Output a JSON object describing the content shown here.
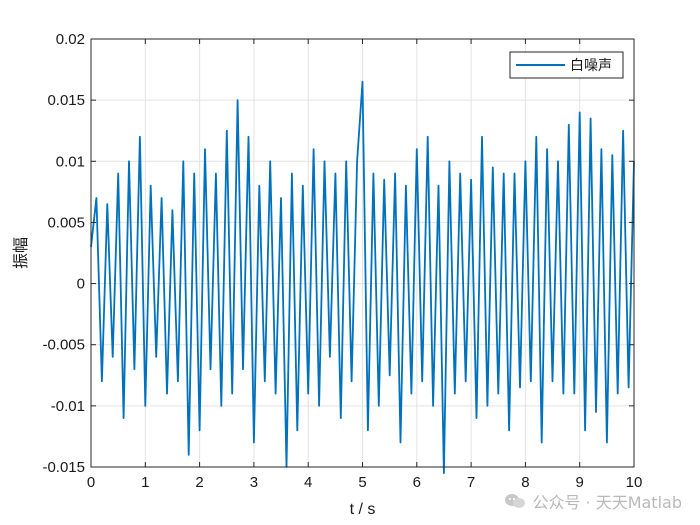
{
  "chart_data": {
    "type": "line",
    "xlabel": "t / s",
    "ylabel": "振幅",
    "xlim": [
      0,
      10
    ],
    "ylim": [
      -0.015,
      0.02
    ],
    "xticks": [
      0,
      1,
      2,
      3,
      4,
      5,
      6,
      7,
      8,
      9,
      10
    ],
    "xtick_labels": [
      "0",
      "1",
      "2",
      "3",
      "4",
      "5",
      "6",
      "7",
      "8",
      "9",
      "10"
    ],
    "yticks": [
      -0.015,
      -0.01,
      -0.005,
      0,
      0.005,
      0.01,
      0.015,
      0.02
    ],
    "ytick_labels": [
      "-0.015",
      "-0.01",
      "-0.005",
      "0",
      "0.005",
      "0.01",
      "0.015",
      "0.02"
    ],
    "grid": true,
    "legend_position": "top-right",
    "colors": {
      "series": "#0072BD",
      "grid": "#e3e3e3",
      "axes": "#262626"
    },
    "series": [
      {
        "name": "白噪声",
        "x": [
          0,
          0.1,
          0.2,
          0.3,
          0.4,
          0.5,
          0.6,
          0.7,
          0.8,
          0.9,
          1.0,
          1.1,
          1.2,
          1.3,
          1.4,
          1.5,
          1.6,
          1.7,
          1.8,
          1.9,
          2.0,
          2.1,
          2.2,
          2.3,
          2.4,
          2.5,
          2.6,
          2.7,
          2.8,
          2.9,
          3.0,
          3.1,
          3.2,
          3.3,
          3.4,
          3.5,
          3.6,
          3.7,
          3.8,
          3.9,
          4.0,
          4.1,
          4.2,
          4.3,
          4.4,
          4.5,
          4.6,
          4.7,
          4.8,
          4.9,
          5.0,
          5.1,
          5.2,
          5.3,
          5.4,
          5.5,
          5.6,
          5.7,
          5.8,
          5.9,
          6.0,
          6.1,
          6.2,
          6.3,
          6.4,
          6.5,
          6.6,
          6.7,
          6.8,
          6.9,
          7.0,
          7.1,
          7.2,
          7.3,
          7.4,
          7.5,
          7.6,
          7.7,
          7.8,
          7.9,
          8.0,
          8.1,
          8.2,
          8.3,
          8.4,
          8.5,
          8.6,
          8.7,
          8.8,
          8.9,
          9.0,
          9.1,
          9.2,
          9.3,
          9.4,
          9.5,
          9.6,
          9.7,
          9.8,
          9.9,
          10.0
        ],
        "values": [
          0.003,
          0.007,
          -0.008,
          0.0065,
          -0.006,
          0.009,
          -0.011,
          0.01,
          -0.007,
          0.012,
          -0.01,
          0.008,
          -0.006,
          0.007,
          -0.009,
          0.006,
          -0.008,
          0.01,
          -0.014,
          0.009,
          -0.012,
          0.011,
          -0.007,
          0.009,
          -0.01,
          0.0125,
          -0.009,
          0.015,
          -0.007,
          0.012,
          -0.013,
          0.008,
          -0.008,
          0.01,
          -0.009,
          0.007,
          -0.015,
          0.009,
          -0.012,
          0.008,
          -0.009,
          0.011,
          -0.01,
          0.01,
          -0.006,
          0.009,
          -0.011,
          0.01,
          -0.008,
          0.01,
          0.0165,
          -0.012,
          0.009,
          -0.01,
          0.0085,
          -0.0075,
          0.009,
          -0.013,
          0.008,
          -0.009,
          0.011,
          -0.008,
          0.012,
          -0.01,
          0.008,
          -0.0155,
          0.01,
          -0.009,
          0.009,
          -0.008,
          0.0085,
          -0.011,
          0.012,
          -0.01,
          0.0095,
          -0.009,
          0.009,
          -0.012,
          0.009,
          -0.0085,
          0.01,
          -0.008,
          0.012,
          -0.013,
          0.011,
          -0.008,
          0.01,
          -0.009,
          0.013,
          -0.009,
          0.014,
          -0.012,
          0.0135,
          -0.0105,
          0.011,
          -0.013,
          0.0105,
          -0.009,
          0.0125,
          -0.0085,
          0.01
        ]
      }
    ]
  },
  "watermark": {
    "text": "公众号 · 天天Matlab"
  }
}
